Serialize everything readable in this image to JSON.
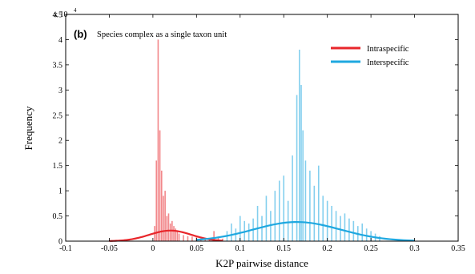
{
  "chart_data": {
    "type": "bar",
    "panel_label": "(b)",
    "title": "Species complex as a single taxon unit",
    "xlabel": "K2P pairwise distance",
    "ylabel": "Frequency",
    "y_multiplier": "x 10",
    "y_exponent": "4",
    "xlim": [
      -0.1,
      0.35
    ],
    "ylim": [
      0,
      4.5
    ],
    "x_ticks": [
      -0.1,
      -0.05,
      0,
      0.05,
      0.1,
      0.15,
      0.2,
      0.25,
      0.3,
      0.35
    ],
    "x_tick_labels": [
      "-0.1",
      "-0.05",
      "0",
      "0.05",
      "0.1",
      "0.15",
      "0.2",
      "0.25",
      "0.3",
      "0.35"
    ],
    "y_ticks": [
      0,
      0.5,
      1,
      1.5,
      2,
      2.5,
      3,
      3.5,
      4,
      4.5
    ],
    "y_tick_labels": [
      "0",
      "0.5",
      "1",
      "1.5",
      "2",
      "2.5",
      "3",
      "3.5",
      "4",
      "4.5"
    ],
    "legend_position": "top-right",
    "colors": {
      "intraspecific": "#e8262b",
      "interspecific": "#1fa8e0"
    },
    "series": [
      {
        "name": "Intraspecific",
        "color": "#e8262b",
        "x": [
          0.002,
          0.004,
          0.006,
          0.008,
          0.01,
          0.012,
          0.014,
          0.016,
          0.018,
          0.02,
          0.022,
          0.024,
          0.026,
          0.028,
          0.03,
          0.035,
          0.04,
          0.045,
          0.05,
          0.055,
          0.06,
          0.065,
          0.07,
          0.075,
          0.08
        ],
        "values": [
          0.3,
          1.6,
          4.0,
          2.2,
          1.4,
          0.9,
          1.0,
          0.5,
          0.55,
          0.35,
          0.4,
          0.3,
          0.25,
          0.2,
          0.15,
          0.12,
          0.1,
          0.09,
          0.08,
          0.05,
          0.06,
          0.04,
          0.2,
          0.08,
          0.05
        ],
        "fit": {
          "mean": 0.02,
          "peak": 0.21,
          "sd": 0.024,
          "x_range": [
            -0.05,
            0.08
          ]
        }
      },
      {
        "name": "Interspecific",
        "color": "#1fa8e0",
        "x": [
          0.085,
          0.09,
          0.095,
          0.1,
          0.105,
          0.11,
          0.115,
          0.12,
          0.125,
          0.13,
          0.135,
          0.14,
          0.145,
          0.15,
          0.155,
          0.16,
          0.165,
          0.168,
          0.17,
          0.172,
          0.175,
          0.18,
          0.185,
          0.19,
          0.195,
          0.2,
          0.205,
          0.21,
          0.215,
          0.22,
          0.225,
          0.23,
          0.235,
          0.24,
          0.245,
          0.25,
          0.255,
          0.26
        ],
        "values": [
          0.2,
          0.35,
          0.25,
          0.5,
          0.4,
          0.35,
          0.45,
          0.7,
          0.5,
          0.9,
          0.6,
          1.0,
          1.2,
          1.3,
          0.8,
          1.7,
          2.9,
          3.8,
          3.1,
          2.2,
          1.6,
          1.4,
          1.1,
          1.5,
          0.9,
          0.8,
          0.7,
          0.6,
          0.5,
          0.55,
          0.45,
          0.4,
          0.3,
          0.35,
          0.25,
          0.2,
          0.15,
          0.1
        ],
        "fit": {
          "mean": 0.165,
          "peak": 0.38,
          "sd": 0.05,
          "x_range": [
            0.05,
            0.3
          ]
        }
      }
    ]
  }
}
